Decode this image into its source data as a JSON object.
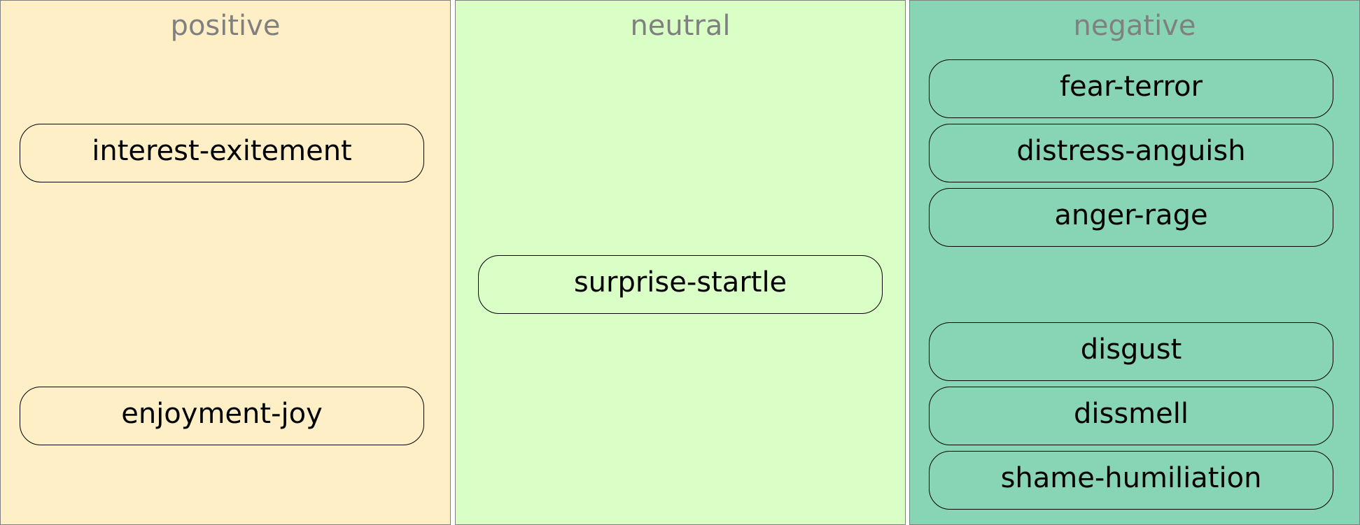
{
  "colors": {
    "positive_fill": "#FFEFC6",
    "neutral_fill": "#D9FFC6",
    "negative_fill": "#88D5B5",
    "panel_border": "#808080",
    "title_color": "#808080",
    "node_border": "#000000"
  },
  "columns": [
    {
      "title": "positive",
      "items": [
        "interest-exitement",
        "enjoyment-joy"
      ]
    },
    {
      "title": "neutral",
      "items": [
        "surprise-startle"
      ]
    },
    {
      "title": "negative",
      "items": [
        "fear-terror",
        "distress-anguish",
        "anger-rage",
        "disgust",
        "dissmell",
        "shame-humiliation"
      ]
    }
  ]
}
